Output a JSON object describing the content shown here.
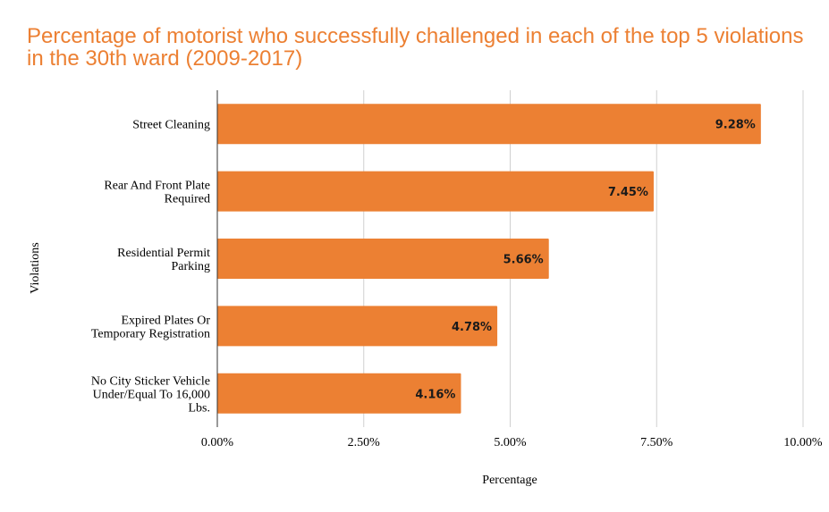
{
  "chart_data": {
    "type": "bar",
    "orientation": "horizontal",
    "title": "Percentage of motorist who successfully challenged in each of the top 5 violations in the 30th ward (2009-2017)",
    "xlabel": "Percentage",
    "ylabel": "Violations",
    "categories": [
      [
        "Street Cleaning"
      ],
      [
        "Rear And Front Plate",
        "Required"
      ],
      [
        "Residential Permit",
        "Parking"
      ],
      [
        "Expired Plates Or",
        "Temporary Registration"
      ],
      [
        "No City Sticker Vehicle",
        "Under/Equal To 16,000",
        "Lbs."
      ]
    ],
    "values": [
      9.28,
      7.45,
      5.66,
      4.78,
      4.16
    ],
    "data_labels": [
      "9.28%",
      "7.45%",
      "5.66%",
      "4.78%",
      "4.16%"
    ],
    "xlim": [
      0,
      10
    ],
    "xticks": [
      0,
      2.5,
      5,
      7.5,
      10
    ],
    "xtick_labels": [
      "0.00%",
      "2.50%",
      "5.00%",
      "7.50%",
      "10.00%"
    ],
    "grid": true,
    "legend": "none",
    "bar_color": "#ec8033",
    "title_color": "#ec8033"
  }
}
